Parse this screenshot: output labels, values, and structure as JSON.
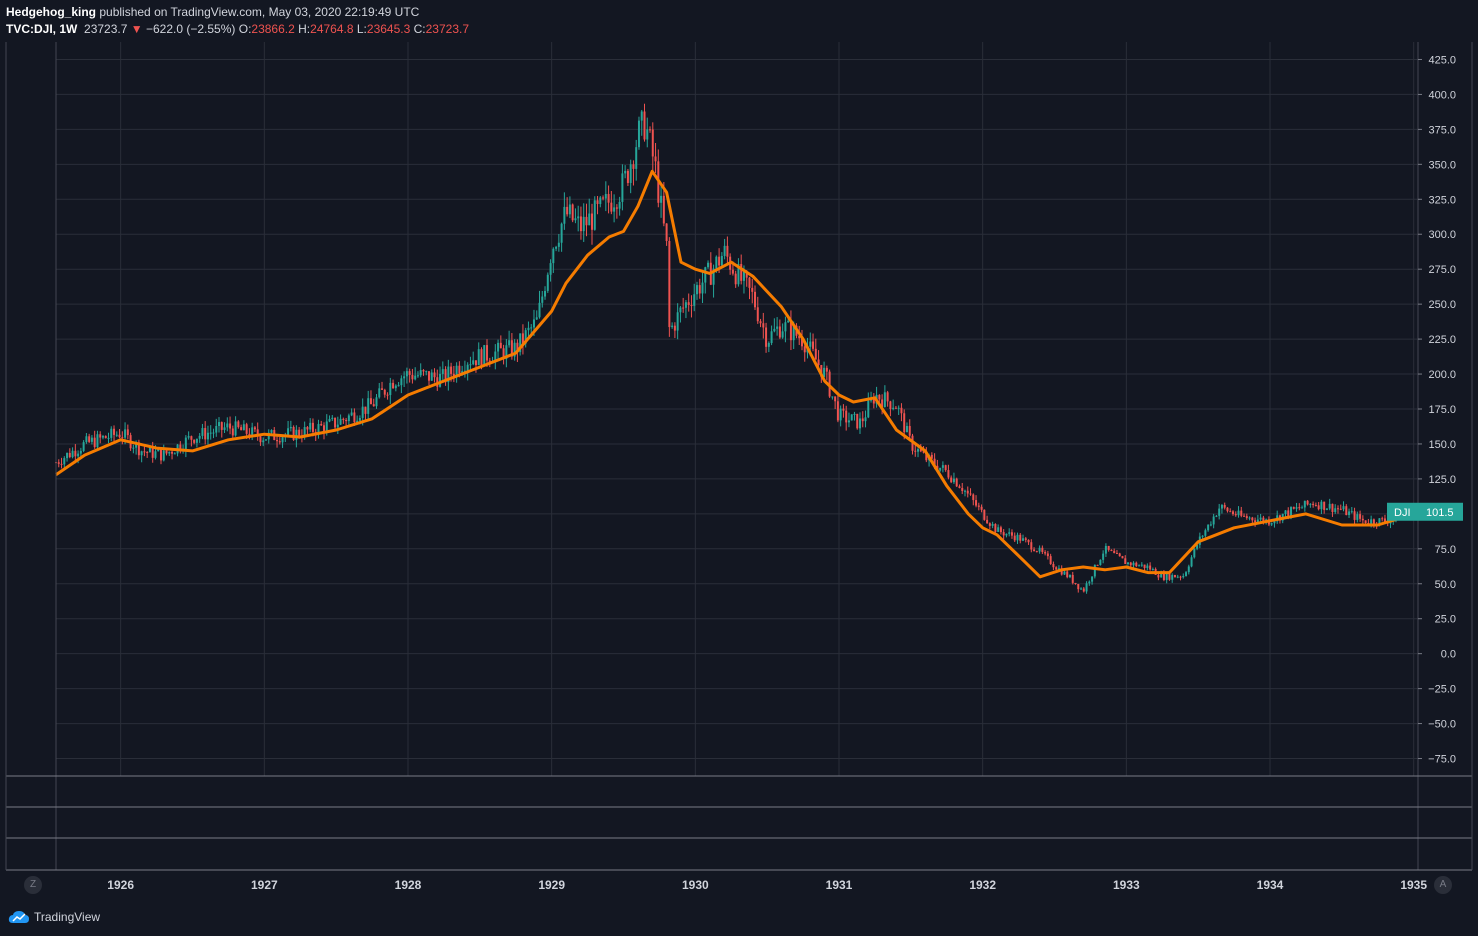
{
  "header": {
    "author": "Hedgehog_king",
    "published_text": "published on TradingView.com, May 03, 2020 22:19:49 UTC",
    "symbol": "TVC:DJI, 1W",
    "last": "23723.7",
    "change": "−622.0 (−2.55%)",
    "o_label": "O:",
    "o_value": "23866.2",
    "h_label": "H:",
    "h_value": "24764.8",
    "l_label": "L:",
    "l_value": "23645.3",
    "c_label": "C:",
    "c_value": "23723.7",
    "down_arrow": "▼"
  },
  "footer": {
    "brand": "TradingView",
    "zoom_button": "Z",
    "auto_button": "A"
  },
  "colors": {
    "background": "#131722",
    "grid": "#2a2e39",
    "up": "#26a69a",
    "down": "#ef5350",
    "ma_line": "#f57c00",
    "price_label_bg": "#26a69a"
  },
  "chart_data": {
    "type": "line",
    "series": [
      {
        "name": "DJI",
        "style": "candlestick",
        "x": [
          1925.55,
          1925.75,
          1926.0,
          1926.15,
          1926.3,
          1926.5,
          1926.75,
          1927.0,
          1927.25,
          1927.5,
          1927.75,
          1927.9,
          1928.0,
          1928.25,
          1928.4,
          1928.6,
          1928.75,
          1928.9,
          1929.0,
          1929.1,
          1929.2,
          1929.35,
          1929.5,
          1929.6,
          1929.65,
          1929.72,
          1929.8,
          1929.82,
          1929.9,
          1930.0,
          1930.1,
          1930.2,
          1930.3,
          1930.4,
          1930.5,
          1930.6,
          1930.75,
          1930.9,
          1931.0,
          1931.15,
          1931.25,
          1931.4,
          1931.5,
          1931.6,
          1931.75,
          1931.85,
          1932.0,
          1932.1,
          1932.25,
          1932.4,
          1932.5,
          1932.6,
          1932.7,
          1932.85,
          1933.0,
          1933.15,
          1933.25,
          1933.4,
          1933.5,
          1933.65,
          1933.8,
          1934.0,
          1934.1,
          1934.3,
          1934.5,
          1934.65,
          1934.8,
          1935.0
        ],
        "y": [
          137,
          150,
          158,
          145,
          142,
          155,
          162,
          155,
          158,
          165,
          178,
          196,
          200,
          197,
          210,
          215,
          218,
          238,
          290,
          315,
          305,
          318,
          335,
          370,
          380,
          348,
          290,
          230,
          245,
          260,
          272,
          287,
          270,
          255,
          225,
          235,
          225,
          200,
          170,
          165,
          185,
          178,
          150,
          140,
          130,
          120,
          100,
          88,
          83,
          73,
          63,
          55,
          45,
          75,
          65,
          62,
          55,
          56,
          80,
          105,
          98,
          95,
          100,
          108,
          103,
          95,
          95,
          101.5
        ]
      },
      {
        "name": "",
        "style": "line",
        "x": [
          1925.55,
          1925.75,
          1926.0,
          1926.25,
          1926.5,
          1926.75,
          1927.0,
          1927.25,
          1927.5,
          1927.75,
          1928.0,
          1928.25,
          1928.5,
          1928.75,
          1929.0,
          1929.1,
          1929.25,
          1929.4,
          1929.5,
          1929.6,
          1929.7,
          1929.8,
          1929.9,
          1930.0,
          1930.1,
          1930.25,
          1930.4,
          1930.6,
          1930.75,
          1930.9,
          1931.0,
          1931.1,
          1931.25,
          1931.4,
          1931.6,
          1931.75,
          1931.9,
          1932.0,
          1932.1,
          1932.2,
          1932.3,
          1932.4,
          1932.55,
          1932.7,
          1932.85,
          1933.0,
          1933.15,
          1933.3,
          1933.5,
          1933.75,
          1934.0,
          1934.25,
          1934.5,
          1934.75,
          1935.0
        ],
        "y": [
          128,
          142,
          153,
          147,
          145,
          153,
          157,
          155,
          160,
          168,
          185,
          195,
          205,
          215,
          245,
          265,
          285,
          298,
          302,
          320,
          345,
          330,
          280,
          275,
          272,
          280,
          270,
          248,
          225,
          195,
          185,
          180,
          183,
          160,
          145,
          120,
          100,
          90,
          85,
          75,
          65,
          55,
          60,
          62,
          60,
          62,
          58,
          58,
          80,
          90,
          95,
          100,
          92,
          92,
          100
        ]
      }
    ],
    "last_value_label": "DJI",
    "last_value": "101.5",
    "ylim": [
      -87.5,
      437.5
    ],
    "yticks": [
      "425.0",
      "400.0",
      "375.0",
      "350.0",
      "325.0",
      "300.0",
      "275.0",
      "250.0",
      "225.0",
      "200.0",
      "175.0",
      "150.0",
      "125.0",
      "100.0",
      "75.0",
      "50.0",
      "25.0",
      "0.0",
      "−25.0",
      "−50.0",
      "−75.0"
    ],
    "xlim": [
      1925.55,
      1935.03
    ],
    "xticks": [
      "1926",
      "1927",
      "1928",
      "1929",
      "1930",
      "1931",
      "1932",
      "1933",
      "1934",
      "1935"
    ],
    "grid": true
  }
}
